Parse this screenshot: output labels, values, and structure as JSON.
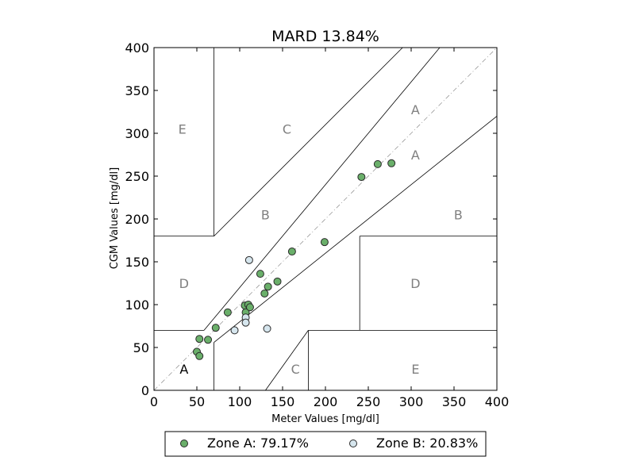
{
  "chart_data": {
    "type": "scatter",
    "title": "MARD 13.84%",
    "xlabel": "Meter Values [mg/dl]",
    "ylabel": "CGM Values [mg/dl]",
    "xlim": [
      0,
      400
    ],
    "ylim": [
      0,
      400
    ],
    "xticks": [
      "0",
      "50",
      "100",
      "150",
      "200",
      "250",
      "300",
      "350",
      "400"
    ],
    "yticks": [
      "0",
      "50",
      "100",
      "150",
      "200",
      "250",
      "300",
      "350",
      "400"
    ],
    "grid": false,
    "legend_position": "bottom",
    "zone_labels": [
      {
        "text": "A",
        "x": 35,
        "y": 25,
        "color": "#000000"
      },
      {
        "text": "A",
        "x": 305,
        "y": 328,
        "color": "#808080"
      },
      {
        "text": "A",
        "x": 305,
        "y": 275,
        "color": "#808080"
      },
      {
        "text": "B",
        "x": 130,
        "y": 205,
        "color": "#808080"
      },
      {
        "text": "B",
        "x": 355,
        "y": 205,
        "color": "#808080"
      },
      {
        "text": "C",
        "x": 155,
        "y": 305,
        "color": "#808080"
      },
      {
        "text": "C",
        "x": 165,
        "y": 25,
        "color": "#808080"
      },
      {
        "text": "D",
        "x": 35,
        "y": 125,
        "color": "#808080"
      },
      {
        "text": "D",
        "x": 305,
        "y": 125,
        "color": "#808080"
      },
      {
        "text": "E",
        "x": 33,
        "y": 305,
        "color": "#808080"
      },
      {
        "text": "E",
        "x": 305,
        "y": 25,
        "color": "#808080"
      }
    ],
    "zone_boundaries": [
      [
        [
          0,
          70
        ],
        [
          58.33,
          70
        ]
      ],
      [
        [
          58.33,
          70
        ],
        [
          70,
          84
        ]
      ],
      [
        [
          70,
          84
        ],
        [
          333.33,
          400
        ]
      ],
      [
        [
          70,
          0
        ],
        [
          70,
          56
        ]
      ],
      [
        [
          70,
          56
        ],
        [
          400,
          320
        ]
      ],
      [
        [
          0,
          180
        ],
        [
          70,
          180
        ]
      ],
      [
        [
          70,
          180
        ],
        [
          290,
          400
        ]
      ],
      [
        [
          70,
          180
        ],
        [
          70,
          400
        ]
      ],
      [
        [
          130,
          0
        ],
        [
          180,
          70
        ]
      ],
      [
        [
          180,
          70
        ],
        [
          400,
          70
        ]
      ],
      [
        [
          180,
          0
        ],
        [
          180,
          70
        ]
      ],
      [
        [
          240,
          70
        ],
        [
          240,
          180
        ]
      ],
      [
        [
          240,
          180
        ],
        [
          400,
          180
        ]
      ]
    ],
    "series": [
      {
        "name": "Zone A: 79.17%",
        "color": "#6aaf6a",
        "points": [
          [
            50,
            45
          ],
          [
            53,
            40
          ],
          [
            53,
            60
          ],
          [
            63,
            59
          ],
          [
            72,
            73
          ],
          [
            86,
            91
          ],
          [
            106,
            99
          ],
          [
            107,
            91
          ],
          [
            110,
            100
          ],
          [
            112,
            97
          ],
          [
            124,
            136
          ],
          [
            129,
            113
          ],
          [
            133,
            121
          ],
          [
            144,
            127
          ],
          [
            161,
            162
          ],
          [
            199,
            173
          ],
          [
            242,
            249
          ],
          [
            261,
            264
          ],
          [
            277,
            265
          ]
        ]
      },
      {
        "name": "Zone B: 20.83%",
        "color": "#d6e6ee",
        "points": [
          [
            94,
            70
          ],
          [
            107,
            85
          ],
          [
            107,
            79
          ],
          [
            111,
            152
          ],
          [
            132,
            72
          ]
        ]
      }
    ]
  }
}
